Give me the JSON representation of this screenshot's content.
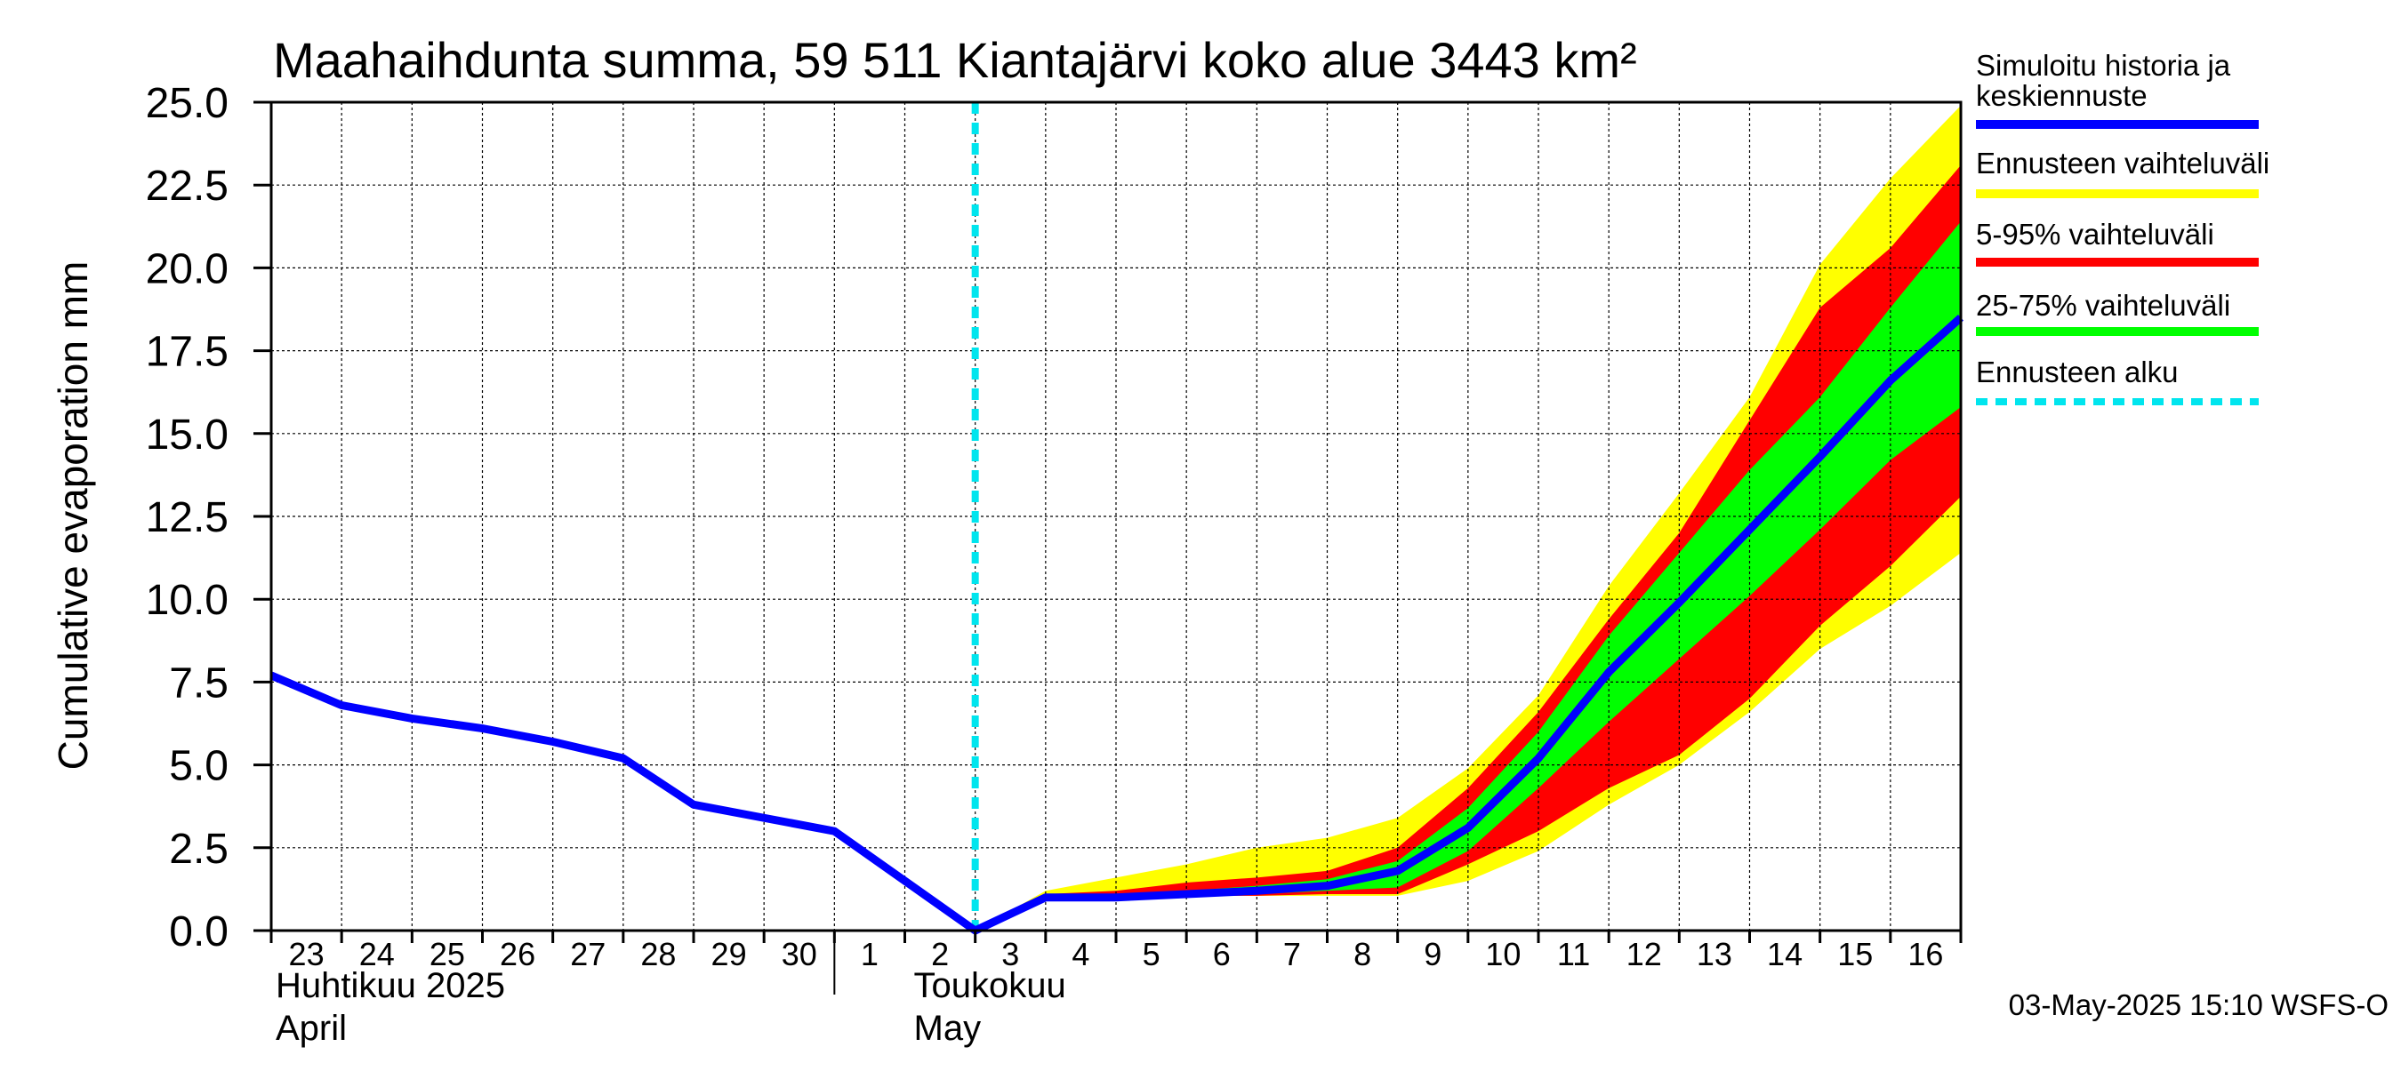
{
  "chart_data": {
    "type": "area",
    "title": "Maahaihdunta summa, 59 511 Kiantajärvi koko alue 3443 km²",
    "ylabel": "Cumulative evaporation   mm",
    "ylim": [
      0,
      25
    ],
    "yticks": [
      "0.0",
      "2.5",
      "5.0",
      "7.5",
      "10.0",
      "12.5",
      "15.0",
      "17.5",
      "20.0",
      "22.5",
      "25.0"
    ],
    "grid": true,
    "x_dates": [
      "2025-04-23",
      "2025-04-24",
      "2025-04-25",
      "2025-04-26",
      "2025-04-27",
      "2025-04-28",
      "2025-04-29",
      "2025-04-30",
      "2025-05-01",
      "2025-05-02",
      "2025-05-03",
      "2025-05-04",
      "2025-05-05",
      "2025-05-06",
      "2025-05-07",
      "2025-05-08",
      "2025-05-09",
      "2025-05-10",
      "2025-05-11",
      "2025-05-12",
      "2025-05-13",
      "2025-05-14",
      "2025-05-15",
      "2025-05-16",
      "2025-05-17"
    ],
    "xtick_labels": [
      "23",
      "24",
      "25",
      "26",
      "27",
      "28",
      "29",
      "30",
      "1",
      "2",
      "3",
      "4",
      "5",
      "6",
      "7",
      "8",
      "9",
      "10",
      "11",
      "12",
      "13",
      "14",
      "15",
      "16"
    ],
    "month_labels": [
      {
        "line1": "Huhtikuu  2025",
        "line2": "April"
      },
      {
        "line1": "Toukokuu",
        "line2": "May"
      }
    ],
    "forecast_start": "2025-05-03",
    "series": [
      {
        "name": "Simuloitu historia ja keskiennuste",
        "color": "#0000ff",
        "values": [
          7.7,
          6.8,
          6.4,
          6.1,
          5.7,
          5.2,
          3.8,
          3.4,
          3.0,
          1.5,
          0.0,
          1.0,
          1.0,
          1.1,
          1.2,
          1.35,
          1.8,
          3.1,
          5.2,
          7.8,
          9.9,
          12.1,
          14.3,
          16.6,
          18.5
        ]
      },
      {
        "name": "Ennusteen vaihteluväli",
        "color": "#ffff00",
        "lower": [
          null,
          null,
          null,
          null,
          null,
          null,
          null,
          null,
          null,
          null,
          0.0,
          1.0,
          1.0,
          1.05,
          1.05,
          1.05,
          1.05,
          1.5,
          2.4,
          3.8,
          5.0,
          6.6,
          8.5,
          9.8,
          11.4
        ],
        "upper": [
          null,
          null,
          null,
          null,
          null,
          null,
          null,
          null,
          null,
          null,
          0.0,
          1.2,
          1.6,
          2.0,
          2.5,
          2.8,
          3.4,
          4.9,
          7.1,
          10.4,
          13.2,
          16.1,
          20.1,
          22.7,
          24.9
        ]
      },
      {
        "name": "5-95% vaihteluväli",
        "color": "#ff0000",
        "lower": [
          null,
          null,
          null,
          null,
          null,
          null,
          null,
          null,
          null,
          null,
          0.0,
          1.0,
          1.0,
          1.05,
          1.05,
          1.1,
          1.1,
          2.0,
          3.0,
          4.3,
          5.3,
          7.0,
          9.2,
          11.0,
          13.1
        ],
        "upper": [
          null,
          null,
          null,
          null,
          null,
          null,
          null,
          null,
          null,
          null,
          0.0,
          1.1,
          1.2,
          1.45,
          1.6,
          1.8,
          2.5,
          4.3,
          6.6,
          9.4,
          12.0,
          15.4,
          18.8,
          20.6,
          23.1
        ]
      },
      {
        "name": "25-75% vaihteluväli",
        "color": "#00ff00",
        "lower": [
          null,
          null,
          null,
          null,
          null,
          null,
          null,
          null,
          null,
          null,
          0.0,
          1.0,
          1.0,
          1.05,
          1.1,
          1.2,
          1.3,
          2.4,
          4.3,
          6.3,
          8.2,
          10.1,
          12.1,
          14.2,
          15.8
        ],
        "upper": [
          null,
          null,
          null,
          null,
          null,
          null,
          null,
          null,
          null,
          null,
          0.0,
          1.05,
          1.1,
          1.2,
          1.35,
          1.55,
          2.1,
          3.7,
          6.0,
          8.9,
          11.4,
          13.9,
          16.1,
          18.8,
          21.4
        ]
      }
    ],
    "legend": [
      {
        "label_lines": [
          "Simuloitu historia ja",
          "keskiennuste"
        ],
        "color": "#0000ff",
        "style": "solid"
      },
      {
        "label_lines": [
          "Ennusteen vaihteluväli"
        ],
        "color": "#ffff00",
        "style": "solid"
      },
      {
        "label_lines": [
          "5-95% vaihteluväli"
        ],
        "color": "#ff0000",
        "style": "solid"
      },
      {
        "label_lines": [
          "25-75% vaihteluväli"
        ],
        "color": "#00ff00",
        "style": "solid"
      },
      {
        "label_lines": [
          "Ennusteen alku"
        ],
        "color": "#00e5ee",
        "style": "dashed"
      }
    ],
    "legend_placement": "right",
    "footer": "03-May-2025 15:10 WSFS-O"
  }
}
